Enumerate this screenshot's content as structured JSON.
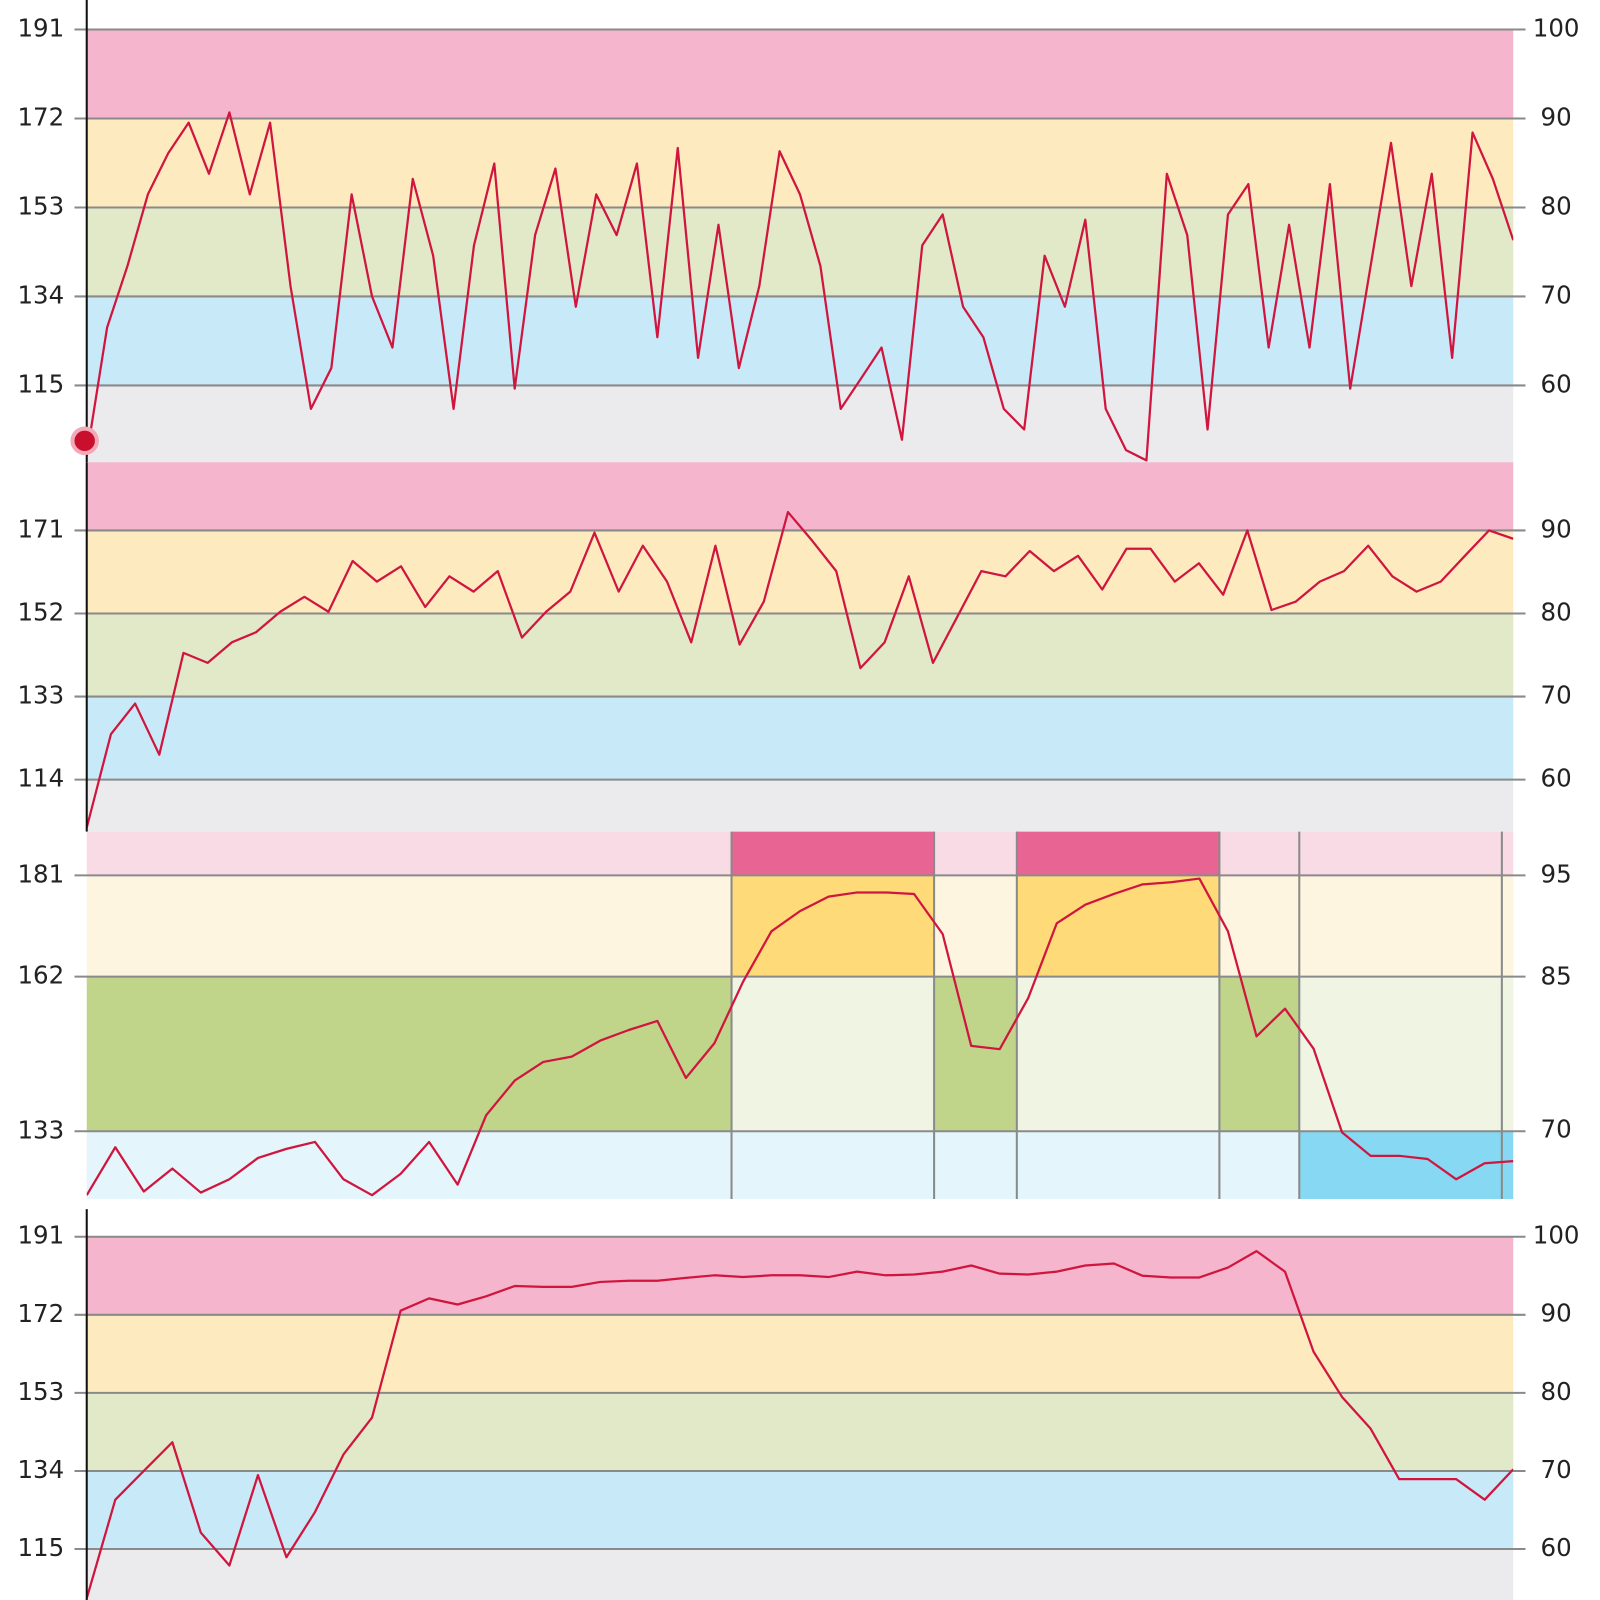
{
  "chart_data": [
    {
      "type": "line",
      "ylim": [
        98.6,
        197.3
      ],
      "yticks": [
        191,
        172,
        153,
        134,
        115
      ],
      "y2lim": [
        51.4,
        103.3
      ],
      "y2ticks": [
        100,
        90,
        80,
        70,
        60
      ],
      "axis_line": true,
      "zone_colors": [
        "#ebebee",
        "#c8eaf8",
        "#e1e9c8",
        "#fdebbf",
        "#f4b5cd",
        "#ffffff"
      ],
      "series": [
        {
          "color": "#d0153f",
          "values": [
            100,
            127.4,
            140.5,
            155.8,
            164.6,
            171.1,
            160.2,
            173.3,
            155.8,
            171.1,
            136.2,
            110,
            118.7,
            155.8,
            134,
            123.1,
            159.1,
            142.7,
            110,
            144.9,
            162.4,
            114.3,
            147.1,
            161.3,
            131.8,
            155.8,
            147.1,
            162.4,
            125.3,
            165.7,
            120.9,
            149.3,
            118.7,
            136.2,
            165,
            155.8,
            140.5,
            110,
            116.5,
            123.1,
            103.4,
            144.9,
            151.5,
            131.8,
            125.3,
            110,
            105.6,
            142.7,
            131.8,
            150.4,
            110,
            101.2,
            99,
            160.2,
            147.1,
            105.6,
            151.5,
            158,
            123.1,
            149.3,
            123.1,
            158,
            114.3,
            140.5,
            166.8,
            136.2,
            160.2,
            120.9,
            169,
            159.1,
            146
          ]
        }
      ]
    },
    {
      "type": "line",
      "ylim": [
        102.1,
        186.6
      ],
      "yticks": [
        171,
        152,
        133,
        114
      ],
      "y2lim": [
        53.7,
        98.2
      ],
      "y2ticks": [
        90,
        80,
        70,
        60
      ],
      "axis_line": true,
      "zone_colors": [
        "#ebebee",
        "#c8eaf8",
        "#e1e9c8",
        "#fdebbf",
        "#f4b5cd"
      ],
      "series": [
        {
          "color": "#d0153f",
          "values": [
            103,
            124.4,
            131.4,
            119.7,
            143,
            140.7,
            145.4,
            147.7,
            152.4,
            155.8,
            152.4,
            164,
            159.3,
            162.8,
            153.5,
            160.5,
            157,
            161.7,
            146.5,
            152.4,
            157,
            170.5,
            157,
            167.5,
            159.3,
            145.4,
            167.5,
            144.9,
            154.7,
            175.2,
            168.7,
            161.7,
            139.5,
            145.4,
            160.5,
            140.7,
            151.2,
            161.7,
            160.5,
            166.3,
            161.7,
            165.2,
            157.5,
            166.8,
            166.8,
            159.3,
            163.5,
            156.3,
            171,
            152.8,
            154.7,
            159.3,
            161.7,
            167.5,
            160.5,
            157,
            159.3,
            165.2,
            171,
            169.1
          ]
        }
      ]
    },
    {
      "type": "line",
      "ylim": [
        120.3,
        189.2
      ],
      "yticks": [
        181,
        162,
        133
      ],
      "y2lim": [
        63.3,
        99.3
      ],
      "y2ticks": [
        95,
        85,
        70
      ],
      "axis_line": false,
      "zone_colors": [
        "#e4f5fb",
        "#f0f4e3",
        "#fef5e0",
        "#f9dbe6"
      ],
      "highlight_colors": [
        "#87d8f2",
        "#c0d48a",
        "#fedb78",
        "#e86493"
      ],
      "segments": [
        {
          "end": 22.6,
          "zones": [
            1
          ]
        },
        {
          "end": 29.7,
          "zones": [
            2,
            3
          ]
        },
        {
          "end": 32.6,
          "zones": [
            1
          ]
        },
        {
          "end": 39.7,
          "zones": [
            2,
            3
          ]
        },
        {
          "end": 42.5,
          "zones": [
            1
          ]
        },
        {
          "end": 49.6,
          "zones": [
            0
          ]
        },
        {
          "end": 50,
          "zones": [
            0
          ]
        }
      ],
      "series": [
        {
          "color": "#d0153f",
          "values": [
            121,
            130,
            121.7,
            126,
            121.5,
            124,
            128,
            129.7,
            131,
            124,
            121,
            125,
            131,
            123,
            136,
            142.5,
            146,
            147,
            150,
            152,
            153.7,
            143,
            149.5,
            161,
            170.5,
            174.3,
            177,
            177.8,
            177.8,
            177.5,
            170,
            149,
            148.4,
            158,
            172,
            175.5,
            177.5,
            179.3,
            179.7,
            180.4,
            170.5,
            150.8,
            156,
            148.5,
            132.8,
            128.4,
            128.4,
            127.8,
            124,
            127,
            127.4
          ]
        }
      ]
    },
    {
      "type": "line",
      "ylim": [
        102.6,
        197.7
      ],
      "yticks": [
        191,
        172,
        153,
        134,
        115
      ],
      "y2lim": [
        53.5,
        103.5
      ],
      "y2ticks": [
        100,
        90,
        80,
        70,
        60
      ],
      "axis_line": true,
      "zone_colors": [
        "#ebebee",
        "#c8eaf8",
        "#e1e9c8",
        "#fdebbf",
        "#f4b5cd",
        "#ffffff"
      ],
      "series": [
        {
          "color": "#d0153f",
          "values": [
            103,
            127,
            134,
            141,
            119,
            111,
            133,
            113,
            124,
            138,
            147,
            173,
            176,
            174.5,
            176.5,
            179,
            178.8,
            178.8,
            180,
            180.3,
            180.3,
            181,
            181.6,
            181.2,
            181.6,
            181.6,
            181.2,
            182.5,
            181.6,
            181.8,
            182.5,
            184,
            182,
            181.8,
            182.5,
            184,
            184.5,
            181.5,
            181.1,
            181.1,
            183.5,
            187.5,
            182.5,
            163,
            152,
            144.3,
            132,
            132,
            132,
            127,
            134.4
          ]
        }
      ]
    }
  ]
}
